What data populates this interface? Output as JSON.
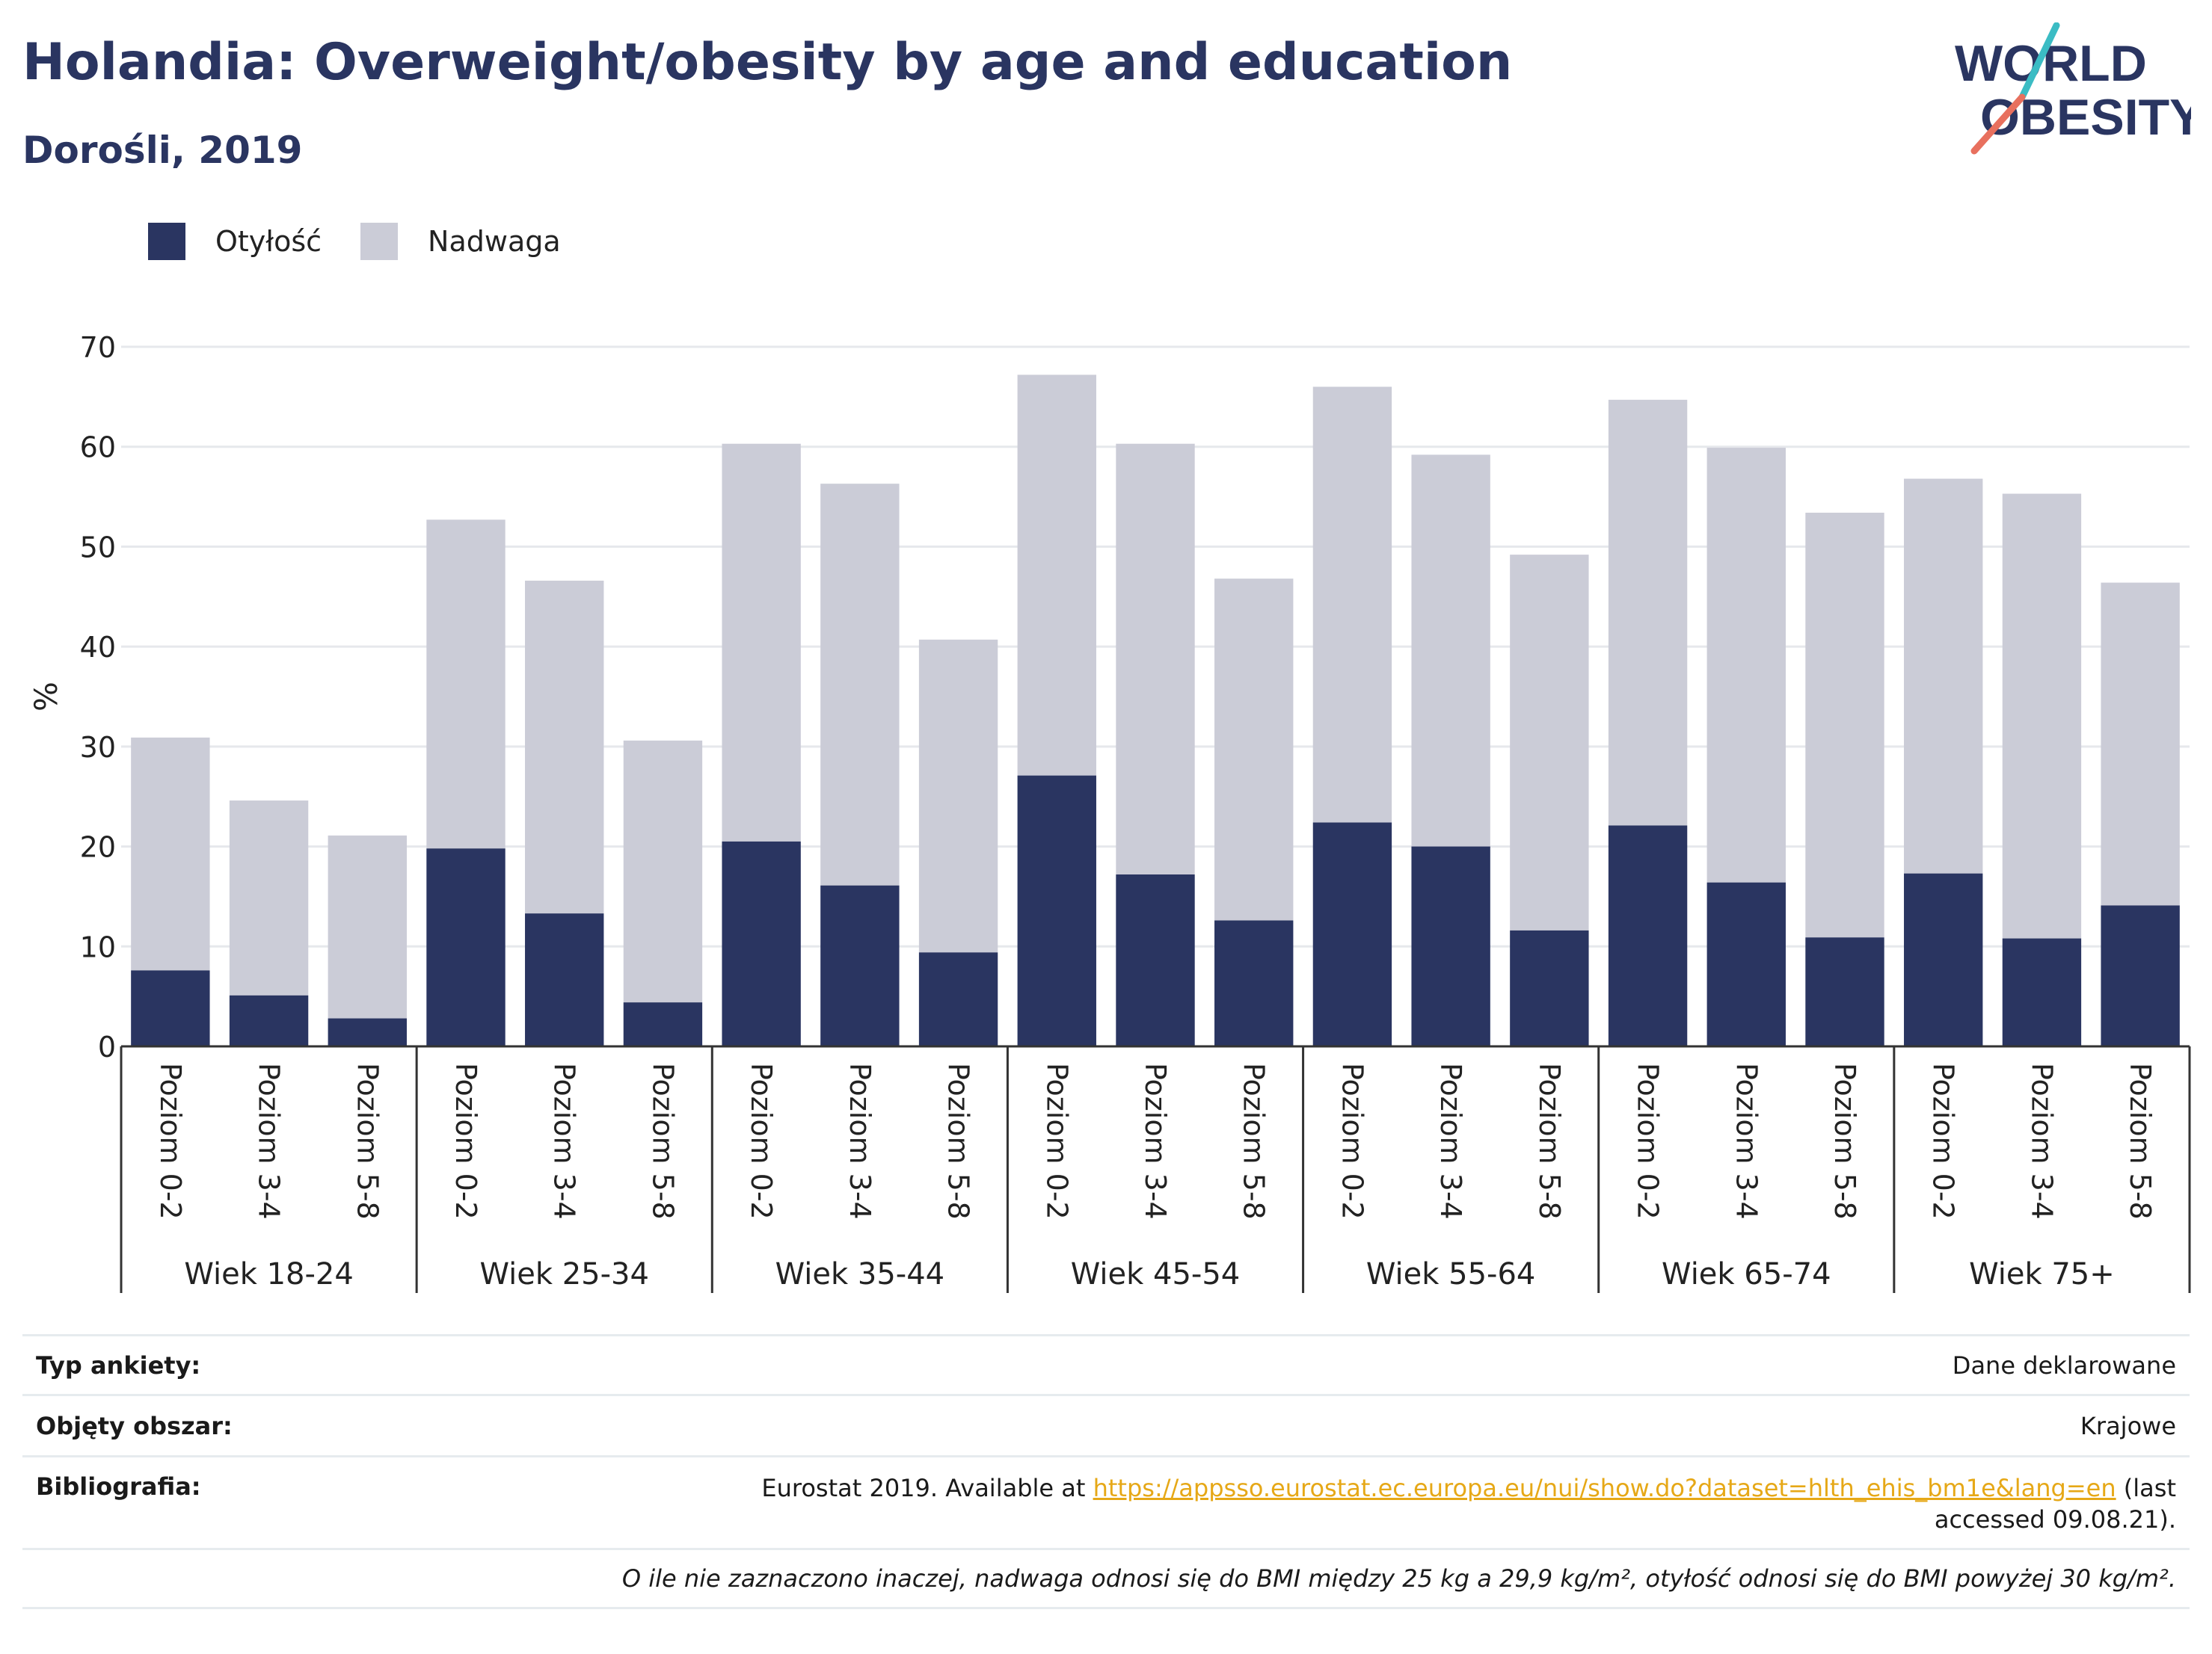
{
  "title": "Holandia: Overweight/obesity by age and education",
  "subtitle": "Dorośli, 2019",
  "logo": {
    "line1": "WORLD",
    "line2": "OBESITY"
  },
  "colors": {
    "obesity": "#2a3561",
    "overweight": "#cbccd7",
    "title": "#2a3561",
    "accent_teal": "#3bbcc4",
    "accent_coral": "#e8705e",
    "link": "#e6a817"
  },
  "chart_data": {
    "type": "bar",
    "stacked": true,
    "ylabel": "%",
    "ylim": [
      0,
      70
    ],
    "yticks": [
      0,
      10,
      20,
      30,
      40,
      50,
      60,
      70
    ],
    "grid": true,
    "legend_position": "top-left",
    "groups": [
      "Wiek 18-24",
      "Wiek 25-34",
      "Wiek 35-44",
      "Wiek 45-54",
      "Wiek 55-64",
      "Wiek 65-74",
      "Wiek 75+"
    ],
    "subcategories": [
      "Poziom 0-2",
      "Poziom 3-4",
      "Poziom 5-8"
    ],
    "series": [
      {
        "name": "Otyłość",
        "values": [
          7.6,
          5.1,
          2.8,
          19.8,
          13.3,
          4.4,
          20.5,
          16.1,
          9.4,
          27.1,
          17.2,
          12.6,
          22.4,
          20.0,
          11.6,
          22.1,
          16.4,
          10.9,
          17.3,
          10.8,
          14.1
        ]
      },
      {
        "name": "Nadwaga",
        "values": [
          23.3,
          19.5,
          18.3,
          32.9,
          33.3,
          26.2,
          39.8,
          40.2,
          31.3,
          40.1,
          43.1,
          34.2,
          43.6,
          39.2,
          37.6,
          42.6,
          43.5,
          42.5,
          39.5,
          44.5,
          32.3
        ]
      }
    ]
  },
  "info_table": {
    "survey_type_label": "Typ ankiety:",
    "survey_type_value": "Dane deklarowane",
    "coverage_label": "Objęty obszar:",
    "coverage_value": "Krajowe",
    "bibliography_label": "Bibliografia:",
    "bibliography_prefix": "Eurostat 2019. Available at",
    "bibliography_link": "https://appsso.eurostat.ec.europa.eu/nui/show.do?dataset=hlth_ehis_bm1e&lang=en",
    "bibliography_suffix": "(last accessed 09.08.21).",
    "footnote": "O ile nie zaznaczono inaczej, nadwaga odnosi się do BMI między 25 kg a 29,9 kg/m², otyłość odnosi się do BMI powyżej 30 kg/m²."
  }
}
